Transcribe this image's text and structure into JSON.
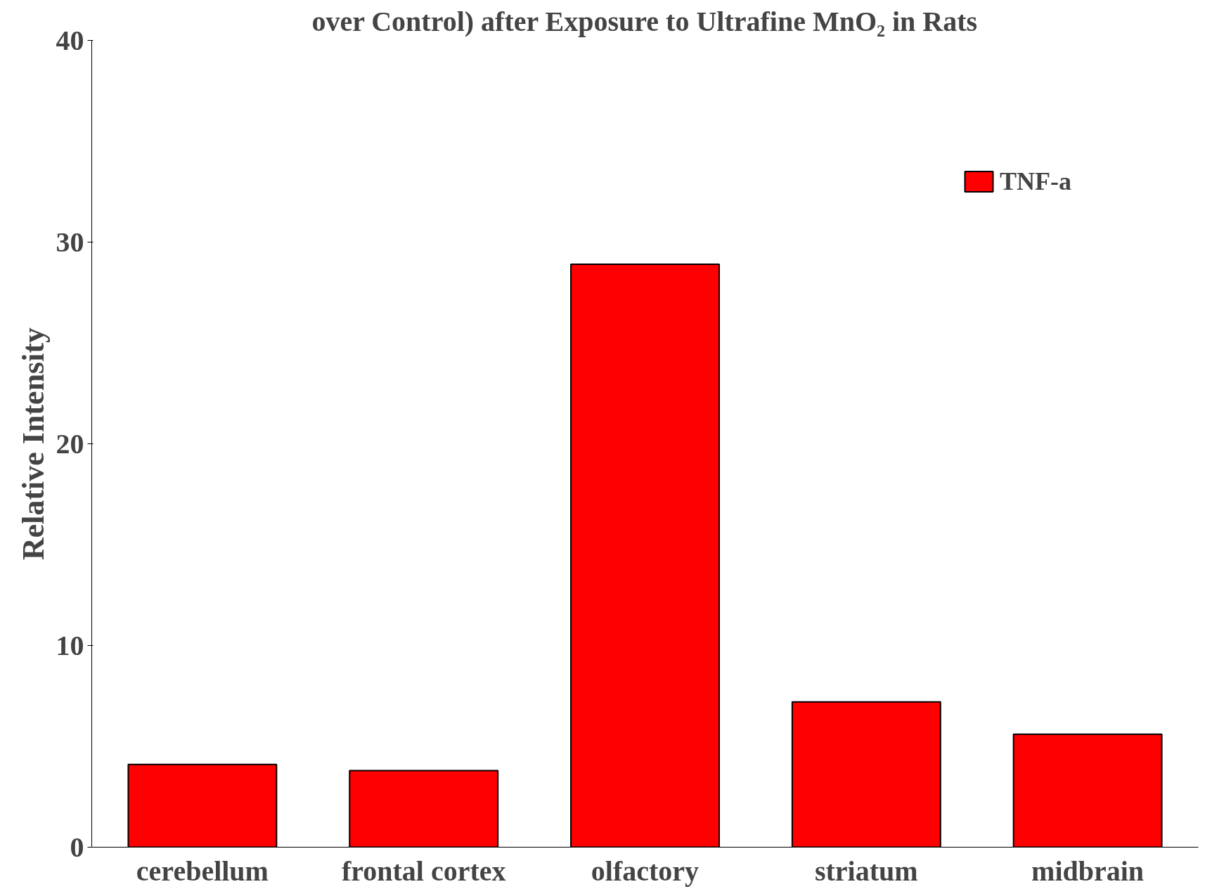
{
  "chart_data": {
    "type": "bar",
    "title": "over Control) after Exposure to Ultrafine MnO₂ in Rats",
    "ylabel": "Relative Intensity",
    "categories": [
      "cerebellum",
      "frontal cortex",
      "olfactory",
      "striatum",
      "midbrain"
    ],
    "series": [
      {
        "name": "TNF-a",
        "color": "#ff0000",
        "values": [
          4.1,
          3.8,
          28.9,
          7.2,
          5.6
        ]
      }
    ],
    "ylim": [
      0,
      40
    ],
    "yticks": [
      0,
      10,
      20,
      30,
      40
    ],
    "grid": false,
    "legend": "top right"
  }
}
